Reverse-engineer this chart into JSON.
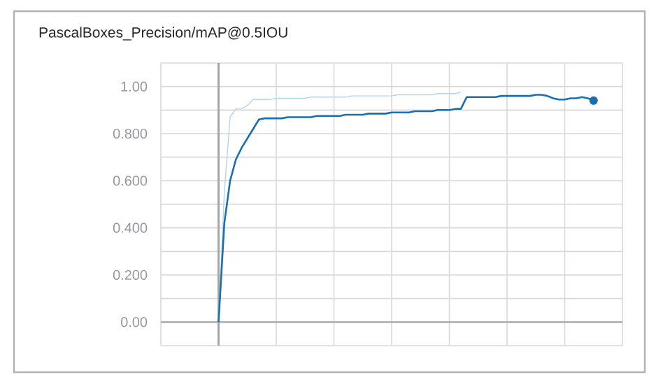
{
  "chart_data": {
    "type": "line",
    "title": "PascalBoxes_Precision/mAP@0.5IOU",
    "categories": [
      null,
      null,
      null,
      null,
      null,
      null,
      null,
      null,
      null,
      null,
      null,
      null,
      null,
      null,
      null,
      null,
      null,
      null,
      null,
      null,
      null,
      null,
      null,
      null,
      null,
      null,
      null,
      null,
      null,
      null,
      null,
      null,
      null,
      null,
      null,
      null,
      null,
      null,
      null,
      null,
      null,
      null,
      null,
      null,
      null,
      null,
      null,
      null,
      null,
      null,
      null,
      null,
      null,
      null,
      null,
      null,
      null,
      null,
      null,
      null,
      null,
      null,
      null,
      null,
      null,
      null
    ],
    "series": [
      {
        "color": "#b3d4ee",
        "values": [
          0,
          0.55,
          0.87,
          0.905,
          0.905,
          0.92,
          0.945,
          0.945,
          0.945,
          0.945,
          0.95,
          0.95,
          0.95,
          0.95,
          0.95,
          0.95,
          0.955,
          0.955,
          0.955,
          0.955,
          0.955,
          0.955,
          0.955,
          0.96,
          0.96,
          0.96,
          0.96,
          0.96,
          0.96,
          0.96,
          0.96,
          0.965,
          0.965,
          0.965,
          0.965,
          0.965,
          0.965,
          0.965,
          0.97,
          0.97,
          0.97,
          0.97,
          0.975,
          null,
          null,
          null,
          null,
          null,
          null,
          null,
          null,
          null,
          null,
          null,
          null,
          null,
          null,
          null,
          null,
          null,
          null,
          null,
          null,
          null,
          null,
          null
        ]
      },
      {
        "color": "#1a6fae",
        "values": [
          0,
          0.42,
          0.6,
          0.69,
          0.74,
          0.78,
          0.82,
          0.86,
          0.865,
          0.865,
          0.865,
          0.865,
          0.87,
          0.87,
          0.87,
          0.87,
          0.87,
          0.875,
          0.875,
          0.875,
          0.875,
          0.875,
          0.88,
          0.88,
          0.88,
          0.88,
          0.885,
          0.885,
          0.885,
          0.885,
          0.89,
          0.89,
          0.89,
          0.89,
          0.895,
          0.895,
          0.895,
          0.895,
          0.9,
          0.9,
          0.9,
          0.905,
          0.905,
          0.955,
          0.955,
          0.955,
          0.955,
          0.955,
          0.955,
          0.96,
          0.96,
          0.96,
          0.96,
          0.96,
          0.96,
          0.965,
          0.965,
          0.96,
          0.95,
          0.945,
          0.945,
          0.95,
          0.95,
          0.955,
          0.95,
          0.94
        ]
      }
    ],
    "ylim": [
      -0.1,
      1.1
    ],
    "yticks": [
      {
        "value": -0.1,
        "label": null
      },
      {
        "value": 0,
        "label": "0.00"
      },
      {
        "value": 0.1,
        "label": null
      },
      {
        "value": 0.2,
        "label": "0.200"
      },
      {
        "value": 0.3,
        "label": null
      },
      {
        "value": 0.4,
        "label": "0.400"
      },
      {
        "value": 0.5,
        "label": null
      },
      {
        "value": 0.6,
        "label": "0.600"
      },
      {
        "value": 0.7,
        "label": null
      },
      {
        "value": 0.8,
        "label": "0.800"
      },
      {
        "value": 0.9,
        "label": null
      },
      {
        "value": 1.0,
        "label": "1.00"
      },
      {
        "value": 1.1,
        "label": null
      }
    ],
    "tick_labels": "y",
    "grid": true,
    "legend": false
  }
}
